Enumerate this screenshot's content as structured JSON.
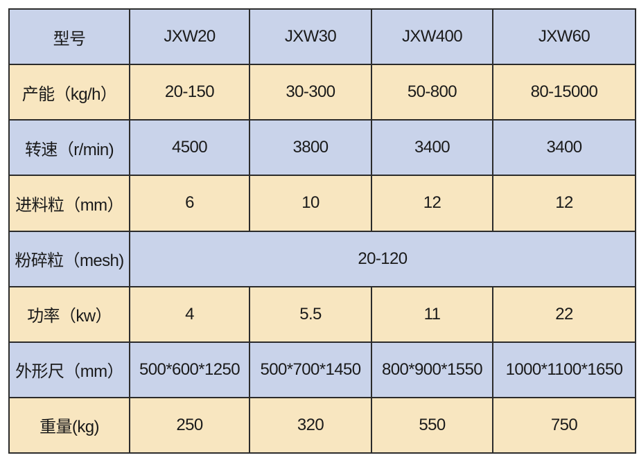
{
  "table": {
    "rows": [
      [
        "型号",
        "JXW20",
        "JXW30",
        "JXW400",
        "JXW60"
      ],
      [
        "产能（kg/h）",
        "20-150",
        "30-300",
        "50-800",
        "80-15000"
      ],
      [
        "转速（r/min)",
        "4500",
        "3800",
        "3400",
        "3400"
      ],
      [
        "进料粒（mm）",
        "6",
        "10",
        "12",
        "12"
      ],
      [
        "粉碎粒（mesh)",
        "20-120"
      ],
      [
        "功率（kw）",
        "4",
        "5.5",
        "11",
        "22"
      ],
      [
        "外形尺（mm）",
        "500*600*1250",
        "500*700*1450",
        "800*900*1550",
        "1000*1100*1650"
      ],
      [
        "重量(kg)",
        "250",
        "320",
        "550",
        "750"
      ]
    ]
  }
}
